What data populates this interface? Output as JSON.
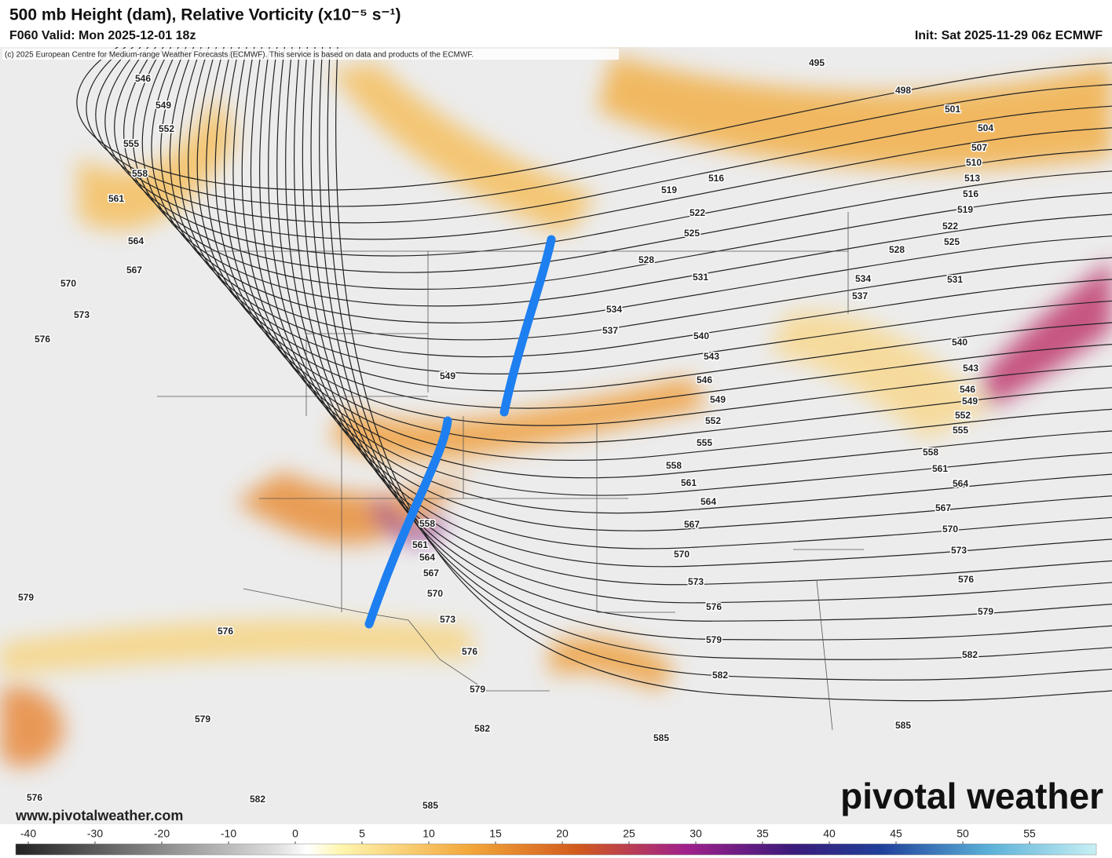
{
  "header": {
    "title": "500 mb Height (dam), Relative Vorticity (x10⁻⁵ s⁻¹)",
    "valid": "F060 Valid: Mon 2025-12-01 18z",
    "init": "Init: Sat 2025-11-29 06z ECMWF",
    "copyright": "(c) 2025 European Centre for Medium-range Weather Forecasts (ECMWF). This service is based on data and products of the ECMWF."
  },
  "map": {
    "contour_labels": [
      546,
      549,
      552,
      555,
      558,
      561,
      564,
      567,
      570,
      573,
      576,
      579,
      576,
      579,
      576,
      582,
      585,
      582,
      579,
      576,
      573,
      570,
      567,
      564,
      561,
      558,
      549,
      495,
      498,
      501,
      504,
      507,
      510,
      513,
      516,
      519,
      522,
      525,
      528,
      531,
      534,
      537,
      540,
      543,
      546,
      549,
      552,
      555,
      558,
      561,
      564,
      567,
      570,
      573,
      576,
      579,
      582,
      585,
      585,
      582,
      579,
      576,
      573,
      570,
      567,
      564,
      561,
      558,
      555,
      552,
      549,
      546,
      543,
      540,
      537,
      534,
      531,
      528,
      525,
      522,
      519,
      516
    ],
    "website": "www.pivotalweather.com",
    "logo": "pivotal weather"
  },
  "colorbar": {
    "ticks": [
      -40,
      -30,
      -20,
      -10,
      0,
      5,
      10,
      15,
      20,
      25,
      30,
      35,
      40,
      45,
      50,
      55
    ]
  }
}
